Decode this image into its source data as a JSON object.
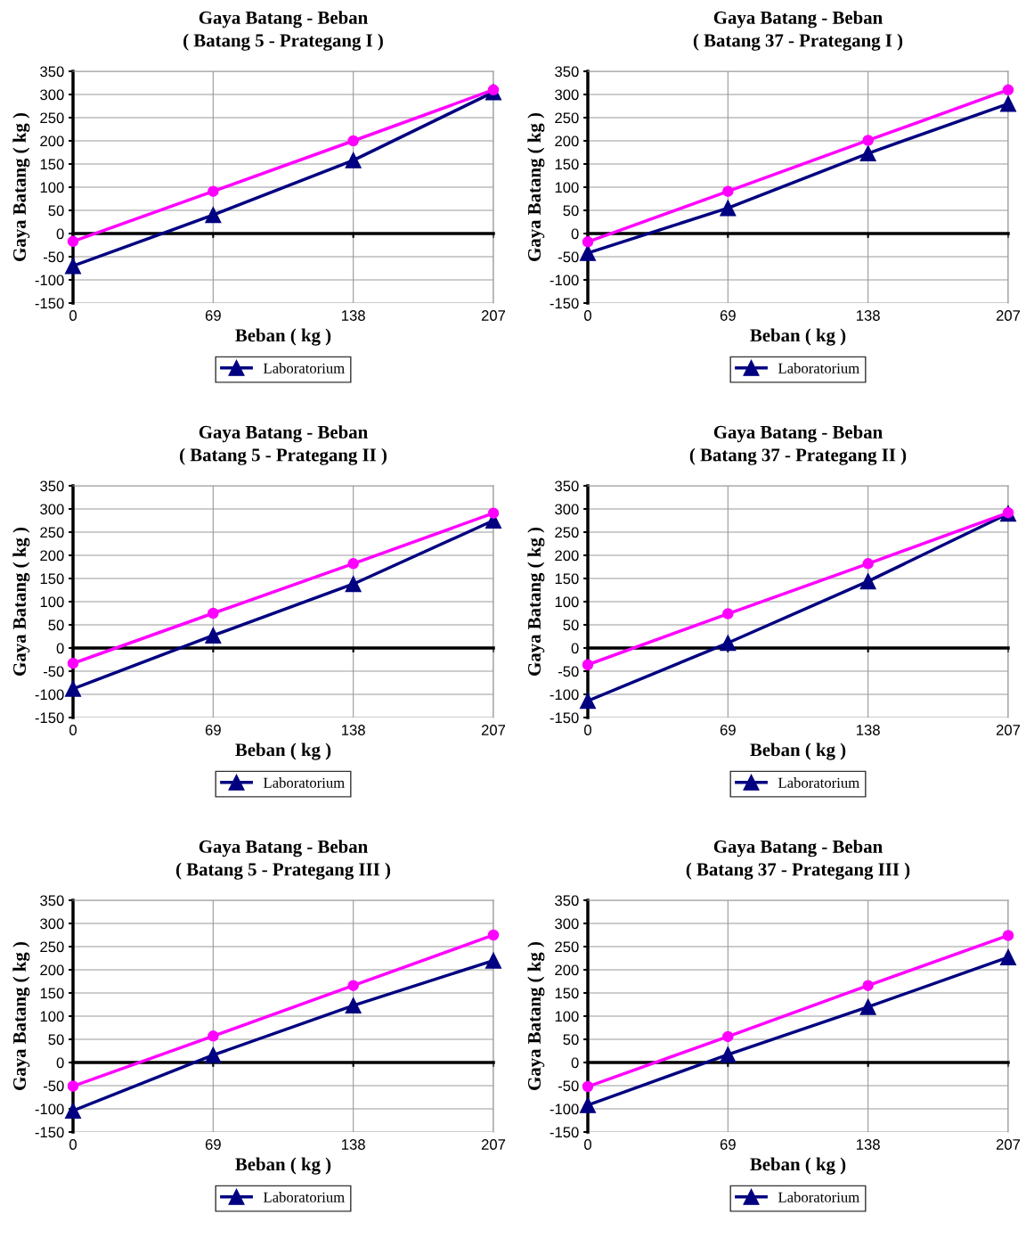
{
  "chart_data": [
    {
      "type": "line",
      "title": "Gaya Batang - Beban",
      "subtitle": "( Batang 5 - Prategang I )",
      "xlabel": "Beban ( kg )",
      "ylabel": "Gaya Batang ( kg )",
      "categories": [
        "0",
        "69",
        "138",
        "207"
      ],
      "ylim": [
        -150,
        350
      ],
      "yticks": [
        -150,
        -100,
        -50,
        0,
        50,
        100,
        150,
        200,
        250,
        300,
        350
      ],
      "grid": true,
      "legend": "bottom",
      "series": [
        {
          "name": "Laboratorium",
          "color": "#000080",
          "marker": "triangle",
          "values": [
            -70,
            40,
            158,
            305
          ]
        },
        {
          "color": "#ff00ff",
          "marker": "circle",
          "values": [
            -17,
            91,
            200,
            310
          ]
        }
      ]
    },
    {
      "type": "line",
      "title": "Gaya Batang - Beban",
      "subtitle": "( Batang 37 - Prategang I )",
      "xlabel": "Beban ( kg )",
      "ylabel": "Gaya Batang ( kg )",
      "categories": [
        "0",
        "69",
        "138",
        "207"
      ],
      "ylim": [
        -150,
        350
      ],
      "yticks": [
        -150,
        -100,
        -50,
        0,
        50,
        100,
        150,
        200,
        250,
        300,
        350
      ],
      "grid": true,
      "legend": "bottom",
      "series": [
        {
          "name": "Laboratorium",
          "color": "#000080",
          "marker": "triangle",
          "values": [
            -42,
            55,
            173,
            280
          ]
        },
        {
          "color": "#ff00ff",
          "marker": "circle",
          "values": [
            -18,
            91,
            201,
            310
          ]
        }
      ]
    },
    {
      "type": "line",
      "title": "Gaya Batang - Beban",
      "subtitle": "( Batang 5 - Prategang II )",
      "xlabel": "Beban ( kg )",
      "ylabel": "Gaya Batang ( kg )",
      "categories": [
        "0",
        "69",
        "138",
        "207"
      ],
      "ylim": [
        -150,
        350
      ],
      "yticks": [
        -150,
        -100,
        -50,
        0,
        50,
        100,
        150,
        200,
        250,
        300,
        350
      ],
      "grid": true,
      "legend": "bottom",
      "series": [
        {
          "name": "Laboratorium",
          "color": "#000080",
          "marker": "triangle",
          "values": [
            -88,
            27,
            138,
            275
          ]
        },
        {
          "color": "#ff00ff",
          "marker": "circle",
          "values": [
            -33,
            75,
            182,
            291
          ]
        }
      ]
    },
    {
      "type": "line",
      "title": "Gaya Batang - Beban",
      "subtitle": "( Batang 37 - Prategang II )",
      "xlabel": "Beban ( kg )",
      "ylabel": "Gaya Batang ( kg )",
      "categories": [
        "0",
        "69",
        "138",
        "207"
      ],
      "ylim": [
        -150,
        350
      ],
      "yticks": [
        -150,
        -100,
        -50,
        0,
        50,
        100,
        150,
        200,
        250,
        300,
        350
      ],
      "grid": true,
      "legend": "bottom",
      "series": [
        {
          "name": "Laboratorium",
          "color": "#000080",
          "marker": "triangle",
          "values": [
            -114,
            11,
            144,
            290
          ]
        },
        {
          "color": "#ff00ff",
          "marker": "circle",
          "values": [
            -36,
            74,
            182,
            292
          ]
        }
      ]
    },
    {
      "type": "line",
      "title": "Gaya Batang - Beban",
      "subtitle": "( Batang 5 - Prategang III )",
      "xlabel": "Beban ( kg )",
      "ylabel": "Gaya Batang ( kg )",
      "categories": [
        "0",
        "69",
        "138",
        "207"
      ],
      "ylim": [
        -150,
        350
      ],
      "yticks": [
        -150,
        -100,
        -50,
        0,
        50,
        100,
        150,
        200,
        250,
        300,
        350
      ],
      "grid": true,
      "legend": "bottom",
      "series": [
        {
          "name": "Laboratorium",
          "color": "#000080",
          "marker": "triangle",
          "values": [
            -104,
            16,
            123,
            220
          ]
        },
        {
          "color": "#ff00ff",
          "marker": "circle",
          "values": [
            -51,
            57,
            166,
            275
          ]
        }
      ]
    },
    {
      "type": "line",
      "title": "Gaya Batang - Beban",
      "subtitle": "( Batang 37 - Prategang III )",
      "xlabel": "Beban ( kg )",
      "ylabel": "Gaya Batang ( kg )",
      "categories": [
        "0",
        "69",
        "138",
        "207"
      ],
      "ylim": [
        -150,
        350
      ],
      "yticks": [
        -150,
        -100,
        -50,
        0,
        50,
        100,
        150,
        200,
        250,
        300,
        350
      ],
      "grid": true,
      "legend": "bottom",
      "series": [
        {
          "name": "Laboratorium",
          "color": "#000080",
          "marker": "triangle",
          "values": [
            -92,
            17,
            120,
            227
          ]
        },
        {
          "color": "#ff00ff",
          "marker": "circle",
          "values": [
            -52,
            56,
            166,
            274
          ]
        }
      ]
    }
  ]
}
